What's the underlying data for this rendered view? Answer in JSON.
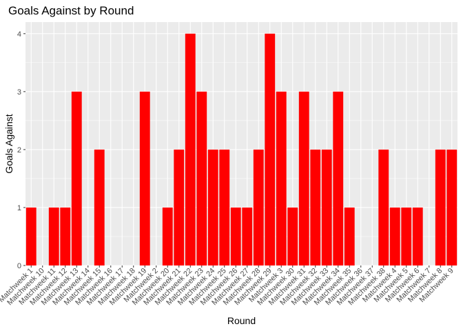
{
  "chart_data": {
    "type": "bar",
    "title": "Goals Against by Round",
    "xlabel": "Round",
    "ylabel": "Goals Against",
    "ylim": [
      0,
      4.2
    ],
    "yticks": [
      0,
      1,
      2,
      3,
      4
    ],
    "grid": true,
    "bar_color": "#ff0000",
    "panel_color": "#ebebeb",
    "categories": [
      "Matchweek 1",
      "Matchweek 10",
      "Matchweek 11",
      "Matchweek 12",
      "Matchweek 13",
      "Matchweek 14",
      "Matchweek 15",
      "Matchweek 16",
      "Matchweek 17",
      "Matchweek 18",
      "Matchweek 19",
      "Matchweek 2",
      "Matchweek 20",
      "Matchweek 21",
      "Matchweek 22",
      "Matchweek 23",
      "Matchweek 24",
      "Matchweek 25",
      "Matchweek 26",
      "Matchweek 27",
      "Matchweek 28",
      "Matchweek 29",
      "Matchweek 3",
      "Matchweek 30",
      "Matchweek 31",
      "Matchweek 32",
      "Matchweek 33",
      "Matchweek 34",
      "Matchweek 35",
      "Matchweek 36",
      "Matchweek 37",
      "Matchweek 38",
      "Matchweek 4",
      "Matchweek 5",
      "Matchweek 6",
      "Matchweek 7",
      "Matchweek 8",
      "Matchweek 9"
    ],
    "values": [
      1,
      0,
      1,
      1,
      3,
      0,
      2,
      0,
      0,
      0,
      3,
      0,
      1,
      2,
      4,
      3,
      2,
      2,
      1,
      1,
      2,
      4,
      3,
      1,
      3,
      2,
      2,
      3,
      1,
      0,
      0,
      2,
      1,
      1,
      1,
      0,
      2,
      2
    ]
  }
}
